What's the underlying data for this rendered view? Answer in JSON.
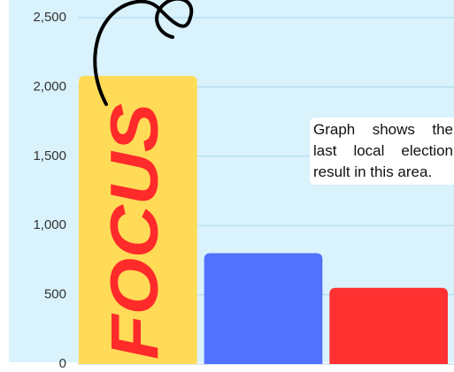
{
  "chart_data": {
    "type": "bar",
    "categories": [
      null,
      null,
      null
    ],
    "values": [
      2080,
      800,
      550
    ],
    "colors": [
      "#ffdb58",
      "#5271ff",
      "#ff3131"
    ],
    "ylim": [
      0,
      2500
    ],
    "yticks": [
      0,
      500,
      {
        "value": 1000,
        "label": "1,000"
      },
      {
        "value": 1500,
        "label": "1,500"
      },
      {
        "value": 2000,
        "label": "2,000"
      },
      {
        "value": 2500,
        "label": "2,500"
      }
    ],
    "grid": true,
    "annotations": [
      "FOCUS",
      "Graph shows the last local election result in this area."
    ]
  }
}
